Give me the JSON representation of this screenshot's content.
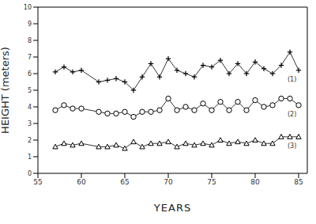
{
  "chart_data": {
    "type": "line",
    "x_label": "YEARS",
    "y_label": "HEIGHT (meters)",
    "x": [
      57,
      58,
      59,
      60,
      62,
      63,
      64,
      65,
      66,
      67,
      68,
      69,
      70,
      71,
      72,
      73,
      74,
      75,
      76,
      77,
      78,
      79,
      80,
      81,
      82,
      83,
      84,
      85
    ],
    "series": [
      {
        "name": "(1)",
        "color": "#000000",
        "marker": "plus",
        "values": [
          6.1,
          6.4,
          6.1,
          6.2,
          5.5,
          5.6,
          5.7,
          5.5,
          5.0,
          5.8,
          6.6,
          5.8,
          6.9,
          6.2,
          6.0,
          5.8,
          6.5,
          6.4,
          6.8,
          6.0,
          6.6,
          6.0,
          6.7,
          6.3,
          6.0,
          6.5,
          7.3,
          6.2
        ]
      },
      {
        "name": "(2)",
        "color": "#000000",
        "marker": "circle",
        "values": [
          3.8,
          4.1,
          3.9,
          3.9,
          3.7,
          3.6,
          3.6,
          3.7,
          3.4,
          3.7,
          3.7,
          3.8,
          4.5,
          3.8,
          4.0,
          3.8,
          4.2,
          3.8,
          4.3,
          3.8,
          4.3,
          3.8,
          4.4,
          4.0,
          4.1,
          4.5,
          4.5,
          4.1
        ]
      },
      {
        "name": "(3)",
        "color": "#000000",
        "marker": "triangle",
        "values": [
          1.6,
          1.8,
          1.7,
          1.8,
          1.6,
          1.6,
          1.7,
          1.5,
          1.9,
          1.6,
          1.8,
          1.8,
          1.9,
          1.6,
          1.8,
          1.7,
          1.8,
          1.7,
          2.0,
          1.8,
          1.9,
          1.8,
          2.0,
          1.8,
          1.8,
          2.2,
          2.2,
          2.2
        ]
      }
    ],
    "xlim": [
      55,
      86
    ],
    "xticks": [
      55,
      60,
      65,
      70,
      75,
      80,
      85
    ],
    "ylim": [
      0,
      10
    ],
    "yticks": [
      0,
      1,
      2,
      3,
      4,
      5,
      6,
      7,
      8,
      9,
      10
    ],
    "grid": false,
    "legend": "none"
  }
}
